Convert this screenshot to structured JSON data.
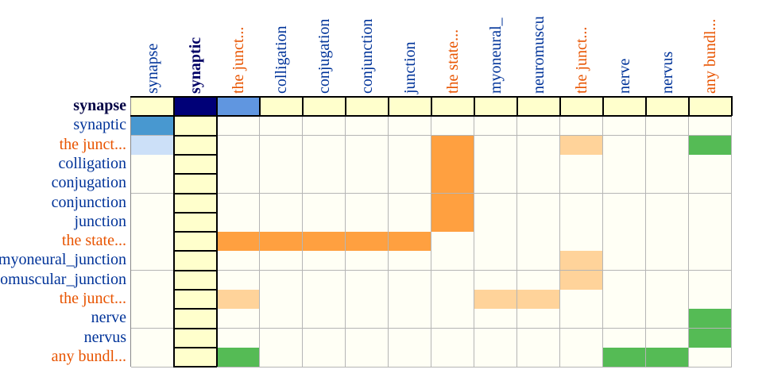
{
  "colors": {
    "blue_label": "#003399",
    "orange_label": "#e85400",
    "navy_header": "#000066",
    "row_label_bold": "#000044",
    "empty_cell": "#fffff5",
    "header_cell": "#ffffcc",
    "intensity": {
      "navy": "#000077",
      "blue_mid": "#6096e0",
      "blue_dark": "#4898d0",
      "blue_light": "#cce0f8",
      "orange": "#ffa040",
      "peach": "#ffd39a",
      "green": "#55bb55"
    }
  },
  "columns": [
    {
      "label": "synapse",
      "kind": "blue"
    },
    {
      "label": "synaptic",
      "kind": "navy"
    },
    {
      "label": "the junct...",
      "kind": "orange"
    },
    {
      "label": "colligation",
      "kind": "blue"
    },
    {
      "label": "conjugation",
      "kind": "blue"
    },
    {
      "label": "conjunction",
      "kind": "blue"
    },
    {
      "label": "junction",
      "kind": "blue"
    },
    {
      "label": "the state...",
      "kind": "orange"
    },
    {
      "label": "myoneural_",
      "kind": "blue"
    },
    {
      "label": "neuromuscu",
      "kind": "blue"
    },
    {
      "label": "the junct...",
      "kind": "orange"
    },
    {
      "label": "nerve",
      "kind": "blue"
    },
    {
      "label": "nervus",
      "kind": "blue"
    },
    {
      "label": "any bundl...",
      "kind": "orange"
    }
  ],
  "rows": [
    {
      "label": "synapse",
      "kind": "bold"
    },
    {
      "label": "synaptic",
      "kind": "blue"
    },
    {
      "label": "the junct...",
      "kind": "orange"
    },
    {
      "label": "colligation",
      "kind": "blue"
    },
    {
      "label": "conjugation",
      "kind": "blue"
    },
    {
      "label": "conjunction",
      "kind": "blue"
    },
    {
      "label": "junction",
      "kind": "blue"
    },
    {
      "label": "the state...",
      "kind": "orange"
    },
    {
      "label": "myoneural_junction",
      "kind": "blue"
    },
    {
      "label": "neuromuscular_junction",
      "kind": "blue"
    },
    {
      "label": "the junct...",
      "kind": "orange"
    },
    {
      "label": "nerve",
      "kind": "blue"
    },
    {
      "label": "nervus",
      "kind": "blue"
    },
    {
      "label": "any bundl...",
      "kind": "orange"
    }
  ],
  "header_row": 0,
  "header_col": 1,
  "filled_cells": [
    {
      "row": 0,
      "col": 1,
      "color": "navy"
    },
    {
      "row": 0,
      "col": 2,
      "color": "blue_mid"
    },
    {
      "row": 1,
      "col": 0,
      "color": "blue_dark"
    },
    {
      "row": 2,
      "col": 0,
      "color": "blue_light"
    },
    {
      "row": 2,
      "col": 7,
      "color": "orange"
    },
    {
      "row": 2,
      "col": 10,
      "color": "peach"
    },
    {
      "row": 2,
      "col": 13,
      "color": "green"
    },
    {
      "row": 3,
      "col": 7,
      "color": "orange"
    },
    {
      "row": 4,
      "col": 7,
      "color": "orange"
    },
    {
      "row": 5,
      "col": 7,
      "color": "orange"
    },
    {
      "row": 6,
      "col": 7,
      "color": "orange"
    },
    {
      "row": 7,
      "col": 2,
      "color": "orange"
    },
    {
      "row": 7,
      "col": 3,
      "color": "orange"
    },
    {
      "row": 7,
      "col": 4,
      "color": "orange"
    },
    {
      "row": 7,
      "col": 5,
      "color": "orange"
    },
    {
      "row": 7,
      "col": 6,
      "color": "orange"
    },
    {
      "row": 8,
      "col": 10,
      "color": "peach"
    },
    {
      "row": 9,
      "col": 10,
      "color": "peach"
    },
    {
      "row": 10,
      "col": 2,
      "color": "peach"
    },
    {
      "row": 10,
      "col": 8,
      "color": "peach"
    },
    {
      "row": 10,
      "col": 9,
      "color": "peach"
    },
    {
      "row": 11,
      "col": 13,
      "color": "green"
    },
    {
      "row": 12,
      "col": 13,
      "color": "green"
    },
    {
      "row": 13,
      "col": 2,
      "color": "green"
    },
    {
      "row": 13,
      "col": 11,
      "color": "green"
    },
    {
      "row": 13,
      "col": 12,
      "color": "green"
    }
  ]
}
